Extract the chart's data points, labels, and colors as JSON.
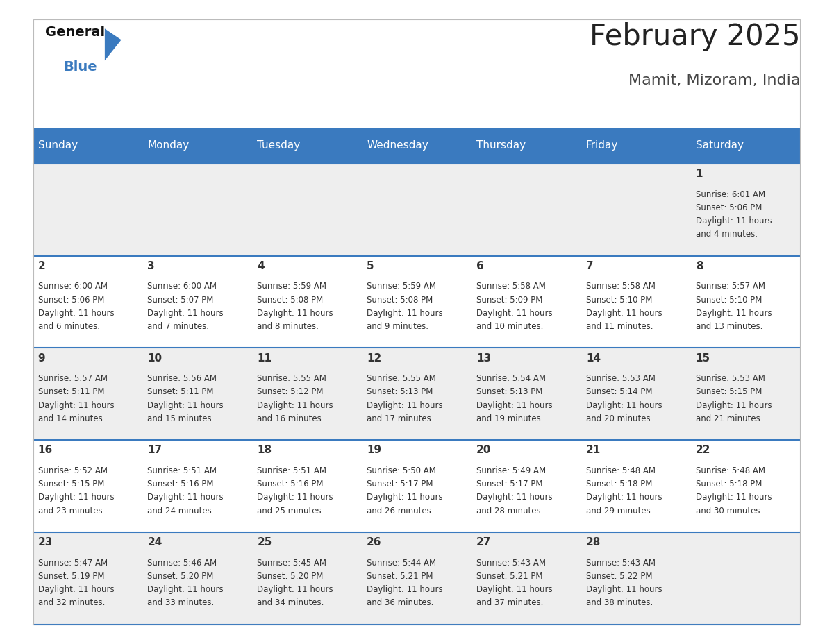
{
  "title": "February 2025",
  "subtitle": "Mamit, Mizoram, India",
  "header_color": "#3a7abf",
  "header_text_color": "#ffffff",
  "weekdays": [
    "Sunday",
    "Monday",
    "Tuesday",
    "Wednesday",
    "Thursday",
    "Friday",
    "Saturday"
  ],
  "bg_color": "#ffffff",
  "cell_bg_even": "#eeeeee",
  "cell_bg_odd": "#ffffff",
  "day_number_color": "#333333",
  "info_text_color": "#333333",
  "title_color": "#222222",
  "subtitle_color": "#444444",
  "separator_color": "#3a7abf",
  "days": [
    {
      "date": 1,
      "col": 6,
      "row": 0,
      "sunrise": "6:01 AM",
      "sunset": "5:06 PM",
      "daylight": "11 hours and 4 minutes"
    },
    {
      "date": 2,
      "col": 0,
      "row": 1,
      "sunrise": "6:00 AM",
      "sunset": "5:06 PM",
      "daylight": "11 hours and 6 minutes"
    },
    {
      "date": 3,
      "col": 1,
      "row": 1,
      "sunrise": "6:00 AM",
      "sunset": "5:07 PM",
      "daylight": "11 hours and 7 minutes"
    },
    {
      "date": 4,
      "col": 2,
      "row": 1,
      "sunrise": "5:59 AM",
      "sunset": "5:08 PM",
      "daylight": "11 hours and 8 minutes"
    },
    {
      "date": 5,
      "col": 3,
      "row": 1,
      "sunrise": "5:59 AM",
      "sunset": "5:08 PM",
      "daylight": "11 hours and 9 minutes"
    },
    {
      "date": 6,
      "col": 4,
      "row": 1,
      "sunrise": "5:58 AM",
      "sunset": "5:09 PM",
      "daylight": "11 hours and 10 minutes"
    },
    {
      "date": 7,
      "col": 5,
      "row": 1,
      "sunrise": "5:58 AM",
      "sunset": "5:10 PM",
      "daylight": "11 hours and 11 minutes"
    },
    {
      "date": 8,
      "col": 6,
      "row": 1,
      "sunrise": "5:57 AM",
      "sunset": "5:10 PM",
      "daylight": "11 hours and 13 minutes"
    },
    {
      "date": 9,
      "col": 0,
      "row": 2,
      "sunrise": "5:57 AM",
      "sunset": "5:11 PM",
      "daylight": "11 hours and 14 minutes"
    },
    {
      "date": 10,
      "col": 1,
      "row": 2,
      "sunrise": "5:56 AM",
      "sunset": "5:11 PM",
      "daylight": "11 hours and 15 minutes"
    },
    {
      "date": 11,
      "col": 2,
      "row": 2,
      "sunrise": "5:55 AM",
      "sunset": "5:12 PM",
      "daylight": "11 hours and 16 minutes"
    },
    {
      "date": 12,
      "col": 3,
      "row": 2,
      "sunrise": "5:55 AM",
      "sunset": "5:13 PM",
      "daylight": "11 hours and 17 minutes"
    },
    {
      "date": 13,
      "col": 4,
      "row": 2,
      "sunrise": "5:54 AM",
      "sunset": "5:13 PM",
      "daylight": "11 hours and 19 minutes"
    },
    {
      "date": 14,
      "col": 5,
      "row": 2,
      "sunrise": "5:53 AM",
      "sunset": "5:14 PM",
      "daylight": "11 hours and 20 minutes"
    },
    {
      "date": 15,
      "col": 6,
      "row": 2,
      "sunrise": "5:53 AM",
      "sunset": "5:15 PM",
      "daylight": "11 hours and 21 minutes"
    },
    {
      "date": 16,
      "col": 0,
      "row": 3,
      "sunrise": "5:52 AM",
      "sunset": "5:15 PM",
      "daylight": "11 hours and 23 minutes"
    },
    {
      "date": 17,
      "col": 1,
      "row": 3,
      "sunrise": "5:51 AM",
      "sunset": "5:16 PM",
      "daylight": "11 hours and 24 minutes"
    },
    {
      "date": 18,
      "col": 2,
      "row": 3,
      "sunrise": "5:51 AM",
      "sunset": "5:16 PM",
      "daylight": "11 hours and 25 minutes"
    },
    {
      "date": 19,
      "col": 3,
      "row": 3,
      "sunrise": "5:50 AM",
      "sunset": "5:17 PM",
      "daylight": "11 hours and 26 minutes"
    },
    {
      "date": 20,
      "col": 4,
      "row": 3,
      "sunrise": "5:49 AM",
      "sunset": "5:17 PM",
      "daylight": "11 hours and 28 minutes"
    },
    {
      "date": 21,
      "col": 5,
      "row": 3,
      "sunrise": "5:48 AM",
      "sunset": "5:18 PM",
      "daylight": "11 hours and 29 minutes"
    },
    {
      "date": 22,
      "col": 6,
      "row": 3,
      "sunrise": "5:48 AM",
      "sunset": "5:18 PM",
      "daylight": "11 hours and 30 minutes"
    },
    {
      "date": 23,
      "col": 0,
      "row": 4,
      "sunrise": "5:47 AM",
      "sunset": "5:19 PM",
      "daylight": "11 hours and 32 minutes"
    },
    {
      "date": 24,
      "col": 1,
      "row": 4,
      "sunrise": "5:46 AM",
      "sunset": "5:20 PM",
      "daylight": "11 hours and 33 minutes"
    },
    {
      "date": 25,
      "col": 2,
      "row": 4,
      "sunrise": "5:45 AM",
      "sunset": "5:20 PM",
      "daylight": "11 hours and 34 minutes"
    },
    {
      "date": 26,
      "col": 3,
      "row": 4,
      "sunrise": "5:44 AM",
      "sunset": "5:21 PM",
      "daylight": "11 hours and 36 minutes"
    },
    {
      "date": 27,
      "col": 4,
      "row": 4,
      "sunrise": "5:43 AM",
      "sunset": "5:21 PM",
      "daylight": "11 hours and 37 minutes"
    },
    {
      "date": 28,
      "col": 5,
      "row": 4,
      "sunrise": "5:43 AM",
      "sunset": "5:22 PM",
      "daylight": "11 hours and 38 minutes"
    }
  ]
}
